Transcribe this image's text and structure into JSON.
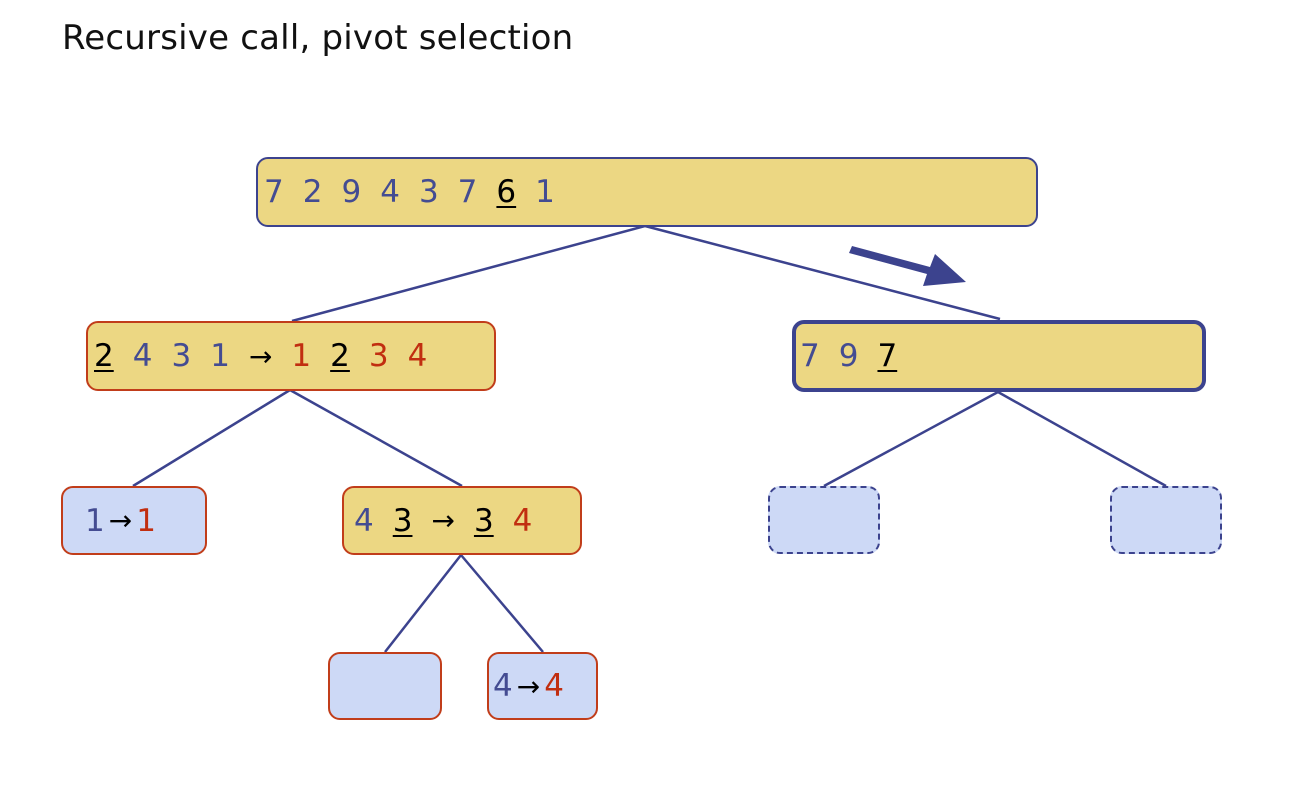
{
  "title": "Recursive call, pivot selection",
  "colors": {
    "node_yellow": "#ecd783",
    "node_blue": "#cdd9f6",
    "border_red": "#c13d1a",
    "border_navy": "#3c438e",
    "input_digits": "#444c92",
    "output_digits": "#c12e10",
    "pivot_digits": "#000000"
  },
  "arrow_symbol": "→",
  "nodes": {
    "root": {
      "input": [
        "7",
        "2",
        "9",
        "4",
        "3",
        "7",
        "6",
        "1"
      ],
      "pivot_index": 6,
      "output": []
    },
    "left": {
      "input": [
        "2",
        "4",
        "3",
        "1"
      ],
      "pivot_index": 0,
      "output": [
        "1",
        "2",
        "3",
        "4"
      ],
      "output_pivot_index": 1
    },
    "right": {
      "input": [
        "7",
        "9",
        "7"
      ],
      "pivot_index": 2,
      "output": []
    },
    "left_left": {
      "input": [
        "1"
      ],
      "output": [
        "1"
      ]
    },
    "left_right": {
      "input": [
        "4",
        "3"
      ],
      "pivot_index": 1,
      "output": [
        "3",
        "4"
      ],
      "output_pivot_index": 0
    },
    "left_right_left": {
      "input": [],
      "output": []
    },
    "left_right_right": {
      "input": [
        "4"
      ],
      "output": [
        "4"
      ]
    },
    "right_left": {
      "input": [],
      "output": []
    },
    "right_right": {
      "input": [],
      "output": []
    }
  }
}
